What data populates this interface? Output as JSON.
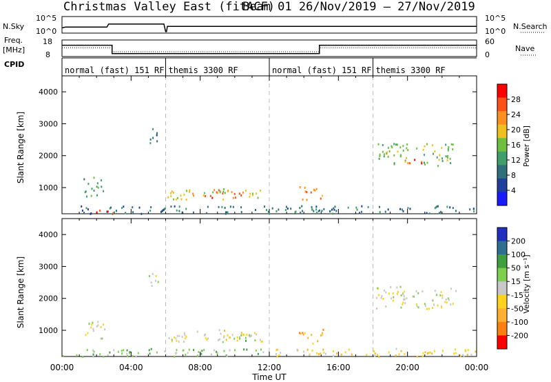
{
  "header": {
    "title": "Christmas Valley East (fitACF)",
    "subtitle": "Beam 01   26/Nov/2019 – 27/Nov/2019"
  },
  "panel_labels": {
    "nsky": "N.Sky",
    "nsearch": "N.Search",
    "freq": "Freq.",
    "freq_unit": "[MHz]",
    "nave": "Nave",
    "cpid": "CPID"
  },
  "time_axis": {
    "label": "Time UT",
    "ticks": [
      "00:00",
      "04:00",
      "08:00",
      "12:00",
      "16:00",
      "20:00",
      "00:00"
    ]
  },
  "colors": {
    "power": [
      "#1a1aff",
      "#1f3f9f",
      "#2e6f7a",
      "#3f9f6a",
      "#6fbf3f",
      "#f0c020",
      "#ff9020",
      "#ff5018",
      "#ff0000"
    ],
    "velocity": [
      "#1f2fbf",
      "#2f6f8f",
      "#3f9f3f",
      "#7fcf4f",
      "#c8c8c8",
      "#ffd21f",
      "#ffb030",
      "#ff7f10",
      "#ff0000"
    ]
  },
  "chart_data": [
    {
      "type": "line",
      "name": "N.Sky / N.Search",
      "x_range_hours": [
        0,
        24
      ],
      "ylabel_left_ticks": [
        "10^5",
        "10^0"
      ],
      "ylabel_right_ticks": [
        "10^5",
        "10^0"
      ],
      "series": [
        {
          "name": "N.Sky",
          "x": [
            0,
            0.2,
            2.6,
            2.7,
            5.9,
            6.0,
            6.05,
            6.1,
            24
          ],
          "y_log": [
            0.3,
            0.35,
            0.35,
            0.55,
            0.55,
            0.05,
            0.05,
            0.4,
            0.4
          ]
        }
      ]
    },
    {
      "type": "line",
      "name": "Freq / Nave",
      "left_ticks": [
        "18",
        "8"
      ],
      "right_ticks": [
        "60",
        "0"
      ],
      "series": [
        {
          "name": "Freq",
          "x": [
            0,
            2.9,
            2.9,
            14.9,
            14.9,
            24
          ],
          "y": [
            15,
            15,
            9.5,
            9.5,
            15,
            15
          ]
        },
        {
          "name": "Nave",
          "x": [
            0,
            2.9,
            2.9,
            14.9,
            14.9,
            24
          ],
          "y": [
            32,
            32,
            16,
            16,
            32,
            32
          ]
        }
      ]
    },
    {
      "type": "table",
      "name": "CPID",
      "segments": [
        {
          "start": 0,
          "end": 6,
          "label": "normal (fast) 151 RF"
        },
        {
          "start": 6,
          "end": 12,
          "label": "themis 3300 RF"
        },
        {
          "start": 12,
          "end": 18,
          "label": "normal (fast) 151 RF"
        },
        {
          "start": 18,
          "end": 24,
          "label": "themis 3300 RF"
        }
      ]
    },
    {
      "type": "heatmap",
      "name": "power",
      "ylabel": "Slant Range [km]",
      "yticks": [
        "1000",
        "2000",
        "3000",
        "4000"
      ],
      "ylim": [
        180,
        4500
      ],
      "colorbar_label": "Power [dB]",
      "colorbar_ticks": [
        "4",
        "8",
        "12",
        "16",
        "20",
        "24",
        "28"
      ],
      "regions": [
        {
          "t0": 1.2,
          "t1": 2.5,
          "r0": 750,
          "r1": 1350,
          "level": 3
        },
        {
          "t0": 5.0,
          "t1": 5.6,
          "r0": 2300,
          "r1": 2900,
          "level": 2
        },
        {
          "t0": 6.1,
          "t1": 11.6,
          "r0": 650,
          "r1": 1000,
          "level": 5
        },
        {
          "t0": 8.0,
          "t1": 10.5,
          "r0": 700,
          "r1": 950,
          "level": 7
        },
        {
          "t0": 13.7,
          "t1": 15.1,
          "r0": 600,
          "r1": 1050,
          "level": 6
        },
        {
          "t0": 18.1,
          "t1": 22.8,
          "r0": 1700,
          "r1": 2400,
          "level": 4
        },
        {
          "t0": 19.8,
          "t1": 21.0,
          "r0": 1750,
          "r1": 1950,
          "level": 7
        },
        {
          "t0": 0,
          "t1": 24,
          "r0": 200,
          "r1": 450,
          "level": 2
        },
        {
          "t0": 1.5,
          "t1": 3.0,
          "r0": 200,
          "r1": 330,
          "level": 8
        }
      ]
    },
    {
      "type": "heatmap",
      "name": "velocity",
      "ylabel": "Slant Range [km]",
      "yticks": [
        "1000",
        "2000",
        "3000",
        "4000"
      ],
      "ylim": [
        180,
        4500
      ],
      "colorbar_label": "Velocity [m s⁻¹]",
      "colorbar_ticks": [
        "200",
        "100",
        "50",
        "15",
        "-15",
        "-50",
        "-100",
        "-200"
      ],
      "regions": [
        {
          "t0": 1.2,
          "t1": 2.5,
          "r0": 750,
          "r1": 1350,
          "level": 4
        },
        {
          "t0": 5.0,
          "t1": 5.6,
          "r0": 2300,
          "r1": 2900,
          "level": 4
        },
        {
          "t0": 6.1,
          "t1": 11.6,
          "r0": 650,
          "r1": 1000,
          "level": 4
        },
        {
          "t0": 9.0,
          "t1": 10.5,
          "r0": 700,
          "r1": 1050,
          "level": 5
        },
        {
          "t0": 10.2,
          "t1": 11.2,
          "r0": 700,
          "r1": 1050,
          "level": 3
        },
        {
          "t0": 13.7,
          "t1": 15.1,
          "r0": 600,
          "r1": 1050,
          "level": 6
        },
        {
          "t0": 18.1,
          "t1": 22.8,
          "r0": 1700,
          "r1": 2400,
          "level": 4
        },
        {
          "t0": 0,
          "t1": 12,
          "r0": 200,
          "r1": 450,
          "level": 3
        },
        {
          "t0": 12,
          "t1": 24,
          "r0": 200,
          "r1": 450,
          "level": 5
        }
      ]
    }
  ]
}
